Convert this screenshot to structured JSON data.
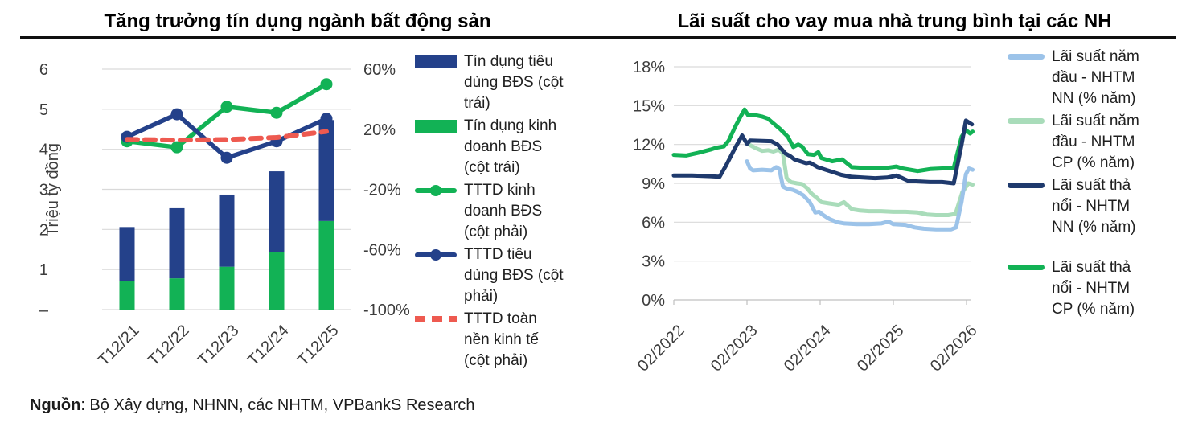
{
  "source": {
    "label": "Nguồn",
    "text": ": Bộ Xây dựng, NHNN, các NHTM, VPBankS Research"
  },
  "chart_data": [
    {
      "id": "real-estate-credit-growth",
      "type": "bar",
      "combo": "stacked bars (left axis) + lines (right axis)",
      "title": "Tăng trưởng tín dụng ngành bất động sản",
      "ylabel": "Triệu tỷ đồng",
      "categories": [
        "T12/21",
        "T12/22",
        "T12/23",
        "T12/24",
        "T12/25"
      ],
      "left_axis": {
        "range": [
          0,
          6
        ],
        "tick_labels": [
          "6",
          "5",
          "4",
          "3",
          "2",
          "1",
          "–"
        ]
      },
      "right_axis": {
        "range": [
          -100,
          60
        ],
        "unit": "%",
        "tick_labels": [
          "60%",
          "20%",
          "-20%",
          "-60%",
          "-100%"
        ]
      },
      "bar_series": [
        {
          "name": "Tín dụng tiêu dùng BĐS (cột trái)",
          "color": "#24418a",
          "stack": "top",
          "values": [
            1.34,
            1.75,
            1.8,
            2.02,
            2.52
          ]
        },
        {
          "name": "Tín dụng kinh doanh BĐS (cột trái)",
          "color": "#12b255",
          "stack": "bottom",
          "values": [
            0.72,
            0.78,
            1.07,
            1.43,
            2.21
          ]
        }
      ],
      "line_series": [
        {
          "name": "TTTD kinh doanh BĐS (cột phải)",
          "color": "#12b255",
          "style": "solid-marker",
          "axis": "right",
          "values": [
            12,
            8,
            35,
            31,
            50
          ]
        },
        {
          "name": "TTTD tiêu dùng BĐS (cột phải)",
          "color": "#24418a",
          "style": "solid-marker",
          "axis": "right",
          "values": [
            15,
            30,
            1,
            12,
            27
          ]
        },
        {
          "name": "TTTD toàn nền kinh tế (cột phải)",
          "color": "#ee5a50",
          "style": "dashed",
          "axis": "right",
          "values": [
            13.3,
            12.8,
            13.2,
            14.5,
            18.5
          ]
        }
      ],
      "legend": [
        {
          "label": "Tín dụng tiêu dùng BĐS (cột trái)",
          "color": "#24418a",
          "swatch": "bar"
        },
        {
          "label": "Tín dụng kinh doanh BĐS (cột trái)",
          "color": "#12b255",
          "swatch": "bar"
        },
        {
          "label": "TTTD kinh doanh BĐS (cột phải)",
          "color": "#12b255",
          "swatch": "line-dot"
        },
        {
          "label": "TTTD tiêu dùng BĐS (cột phải)",
          "color": "#24418a",
          "swatch": "line-dot"
        },
        {
          "label": "TTTD toàn nền kinh tế (cột phải)",
          "color": "#ee5a50",
          "swatch": "dash"
        }
      ]
    },
    {
      "id": "average-mortgage-lending-rates",
      "type": "line",
      "title": "Lãi suất cho vay mua nhà trung bình tại các NH",
      "y_axis": {
        "range": [
          0,
          18
        ],
        "unit": "%",
        "tick_labels": [
          "18%",
          "15%",
          "12%",
          "9%",
          "6%",
          "3%",
          "0%"
        ]
      },
      "x_axis": {
        "unit": "months since 02/2022",
        "tick_labels": [
          "02/2022",
          "02/2023",
          "02/2024",
          "02/2025",
          "02/2026"
        ],
        "tick_months": [
          0,
          12,
          24,
          36,
          48
        ]
      },
      "series": [
        {
          "name": "Lãi suất năm đầu - NHTM NN (% năm)",
          "color": "#9cc3e9",
          "points": [
            [
              12,
              10.7
            ],
            [
              12.5,
              10.15
            ],
            [
              13,
              10.0
            ],
            [
              14.5,
              10.05
            ],
            [
              16,
              10.0
            ],
            [
              16.8,
              10.25
            ],
            [
              17.3,
              10.1
            ],
            [
              17.9,
              8.75
            ],
            [
              18.5,
              8.6
            ],
            [
              19.5,
              8.5
            ],
            [
              20.3,
              8.35
            ],
            [
              21.3,
              8.05
            ],
            [
              22.3,
              7.55
            ],
            [
              23.2,
              6.75
            ],
            [
              23.8,
              6.8
            ],
            [
              24.5,
              6.55
            ],
            [
              25.5,
              6.25
            ],
            [
              26.8,
              6.0
            ],
            [
              28,
              5.9
            ],
            [
              30,
              5.85
            ],
            [
              32,
              5.85
            ],
            [
              34,
              5.9
            ],
            [
              35.2,
              6.05
            ],
            [
              36,
              5.85
            ],
            [
              38,
              5.8
            ],
            [
              39.5,
              5.6
            ],
            [
              41,
              5.5
            ],
            [
              43,
              5.45
            ],
            [
              45.5,
              5.45
            ],
            [
              46.3,
              5.6
            ],
            [
              47.2,
              7.6
            ],
            [
              47.9,
              9.7
            ],
            [
              48.4,
              10.15
            ],
            [
              49,
              10.05
            ]
          ]
        },
        {
          "name": "Lãi suất năm đầu - NHTM CP (% năm)",
          "color": "#a9dcba",
          "points": [
            [
              12.5,
              11.95
            ],
            [
              13.5,
              11.7
            ],
            [
              14.5,
              11.5
            ],
            [
              15.5,
              11.55
            ],
            [
              16.3,
              11.45
            ],
            [
              17.2,
              11.6
            ],
            [
              17.9,
              11.3
            ],
            [
              18.5,
              9.4
            ],
            [
              19.2,
              9.1
            ],
            [
              20.2,
              9.0
            ],
            [
              21,
              8.95
            ],
            [
              21.8,
              8.65
            ],
            [
              22.6,
              8.2
            ],
            [
              23.4,
              7.9
            ],
            [
              24.2,
              7.55
            ],
            [
              25.5,
              7.45
            ],
            [
              27,
              7.35
            ],
            [
              27.9,
              7.55
            ],
            [
              29.2,
              7.0
            ],
            [
              30.5,
              6.9
            ],
            [
              32,
              6.85
            ],
            [
              34,
              6.85
            ],
            [
              36,
              6.8
            ],
            [
              38,
              6.8
            ],
            [
              40,
              6.75
            ],
            [
              41.5,
              6.6
            ],
            [
              43,
              6.55
            ],
            [
              45,
              6.55
            ],
            [
              46.2,
              6.65
            ],
            [
              47.3,
              8.3
            ],
            [
              48.3,
              9.0
            ],
            [
              49,
              8.9
            ]
          ]
        },
        {
          "name": "Lãi suất thả nổi - NHTM NN (% năm)",
          "color": "#1f3a6d",
          "points": [
            [
              0,
              9.6
            ],
            [
              3,
              9.6
            ],
            [
              6,
              9.55
            ],
            [
              7.5,
              9.5
            ],
            [
              8.6,
              10.4
            ],
            [
              9.9,
              11.6
            ],
            [
              11.2,
              12.7
            ],
            [
              12,
              12.05
            ],
            [
              12.5,
              12.3
            ],
            [
              16,
              12.25
            ],
            [
              17,
              12.0
            ],
            [
              18.3,
              11.3
            ],
            [
              19.1,
              11.1
            ],
            [
              19.8,
              10.85
            ],
            [
              20.4,
              10.75
            ],
            [
              21.7,
              10.55
            ],
            [
              22.3,
              10.6
            ],
            [
              23.6,
              10.25
            ],
            [
              24.9,
              10.05
            ],
            [
              26.2,
              9.85
            ],
            [
              27.5,
              9.65
            ],
            [
              29.2,
              9.5
            ],
            [
              31,
              9.45
            ],
            [
              33,
              9.4
            ],
            [
              35,
              9.45
            ],
            [
              36.5,
              9.6
            ],
            [
              37.5,
              9.4
            ],
            [
              38.4,
              9.2
            ],
            [
              40,
              9.15
            ],
            [
              42,
              9.1
            ],
            [
              44,
              9.1
            ],
            [
              45.9,
              9.0
            ],
            [
              47.2,
              12.0
            ],
            [
              47.9,
              13.85
            ],
            [
              48.9,
              13.55
            ]
          ]
        },
        {
          "name": "Lãi suất thả nổi - NHTM CP (% năm)",
          "color": "#12b255",
          "points": [
            [
              0,
              11.2
            ],
            [
              2,
              11.15
            ],
            [
              4,
              11.35
            ],
            [
              6,
              11.6
            ],
            [
              7,
              11.75
            ],
            [
              8.2,
              11.85
            ],
            [
              9,
              12.3
            ],
            [
              10,
              13.3
            ],
            [
              11,
              14.2
            ],
            [
              11.6,
              14.7
            ],
            [
              12.2,
              14.25
            ],
            [
              13,
              14.3
            ],
            [
              14.5,
              14.15
            ],
            [
              15.4,
              14.0
            ],
            [
              16.4,
              13.6
            ],
            [
              17.4,
              13.2
            ],
            [
              18.7,
              12.6
            ],
            [
              19.6,
              11.8
            ],
            [
              20.4,
              12.0
            ],
            [
              21,
              11.85
            ],
            [
              22,
              11.25
            ],
            [
              23,
              11.2
            ],
            [
              23.7,
              11.4
            ],
            [
              24.2,
              10.95
            ],
            [
              26,
              10.7
            ],
            [
              27.6,
              10.85
            ],
            [
              29.2,
              10.25
            ],
            [
              31,
              10.2
            ],
            [
              33,
              10.15
            ],
            [
              35,
              10.2
            ],
            [
              36.5,
              10.3
            ],
            [
              37.5,
              10.15
            ],
            [
              40,
              9.95
            ],
            [
              42,
              10.1
            ],
            [
              44,
              10.15
            ],
            [
              45.9,
              10.2
            ],
            [
              47.2,
              12.6
            ],
            [
              47.9,
              13.1
            ],
            [
              48.6,
              12.85
            ],
            [
              49,
              13.0
            ]
          ]
        }
      ],
      "legend": [
        {
          "label": "Lãi suất năm đầu - NHTM NN (% năm)",
          "color": "#9cc3e9",
          "swatch": "line"
        },
        {
          "label": "Lãi suất năm đầu - NHTM CP (% năm)",
          "color": "#a9dcba",
          "swatch": "line"
        },
        {
          "label": "Lãi suất thả nổi - NHTM NN (% năm)",
          "color": "#1f3a6d",
          "swatch": "line"
        },
        {
          "label": "Lãi suất thả nổi - NHTM CP (% năm)",
          "color": "#12b255",
          "swatch": "line"
        }
      ]
    }
  ]
}
